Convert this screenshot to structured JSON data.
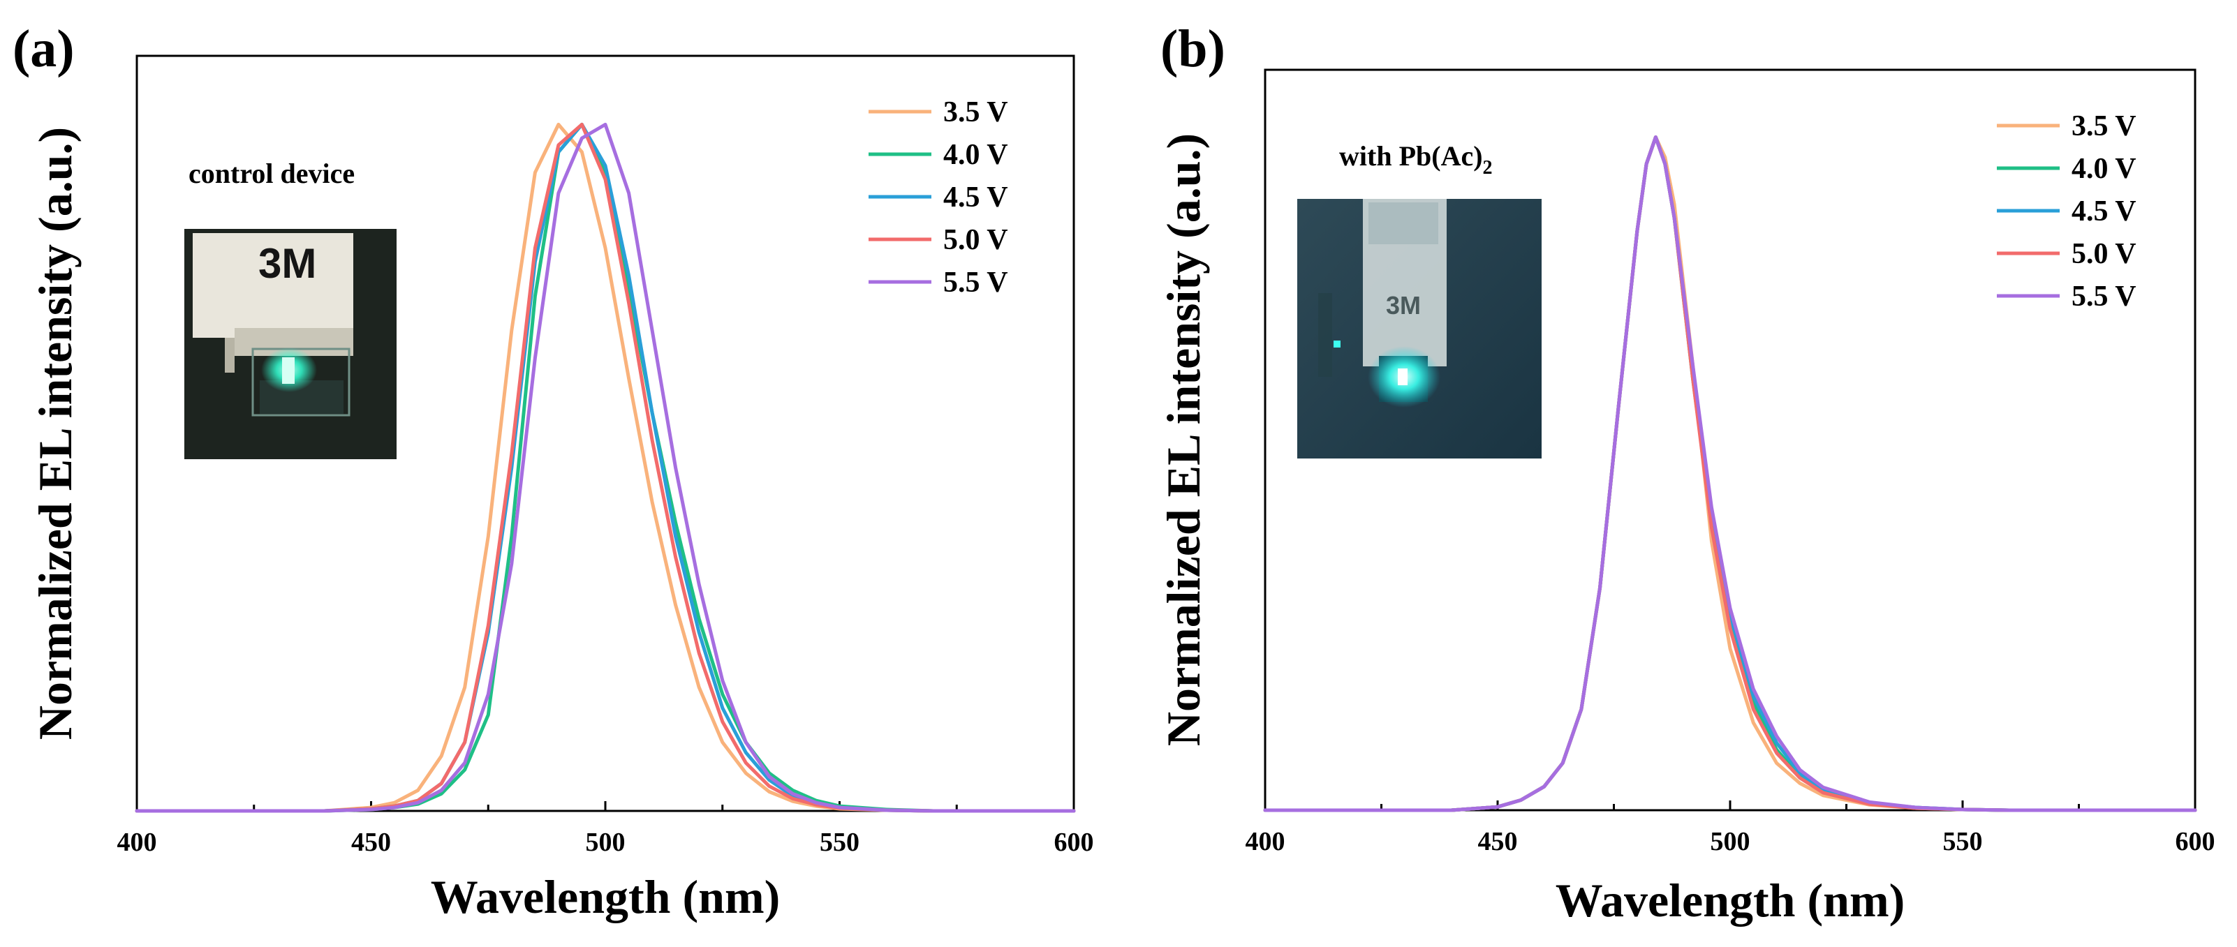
{
  "chart_data": [
    {
      "type": "line",
      "panel": "(a)",
      "xlabel": "Wavelength (nm)",
      "ylabel": "Normalized EL intensity (a.u.)",
      "xlim": [
        400,
        600
      ],
      "ylim": [
        0,
        1.1
      ],
      "xticks": [
        400,
        450,
        500,
        550,
        600
      ],
      "xtick_labels": [
        "400",
        "450",
        "500",
        "550",
        "600"
      ],
      "legend_position": "top-right",
      "inset": {
        "caption": "control device",
        "photo_text": "3M",
        "glow_color": "#33ffd2"
      },
      "x": [
        400,
        440,
        450,
        455,
        460,
        465,
        470,
        475,
        480,
        485,
        490,
        495,
        500,
        505,
        510,
        515,
        520,
        525,
        530,
        535,
        540,
        545,
        550,
        560,
        570,
        600
      ],
      "series": [
        {
          "name": "3.5 V",
          "color": "#f9b27b",
          "values": [
            0,
            0,
            0.005,
            0.012,
            0.03,
            0.08,
            0.18,
            0.4,
            0.7,
            0.93,
            1.0,
            0.96,
            0.82,
            0.63,
            0.45,
            0.3,
            0.18,
            0.1,
            0.055,
            0.028,
            0.014,
            0.007,
            0.003,
            0.001,
            0,
            0
          ]
        },
        {
          "name": "4.0 V",
          "color": "#1fbf86",
          "values": [
            0,
            0,
            0.002,
            0.005,
            0.01,
            0.025,
            0.06,
            0.14,
            0.4,
            0.75,
            0.96,
            1.0,
            0.93,
            0.76,
            0.58,
            0.42,
            0.28,
            0.17,
            0.1,
            0.055,
            0.03,
            0.015,
            0.007,
            0.002,
            0,
            0
          ]
        },
        {
          "name": "4.5 V",
          "color": "#2a9fd8",
          "values": [
            0,
            0,
            0.003,
            0.007,
            0.015,
            0.04,
            0.1,
            0.26,
            0.5,
            0.8,
            0.96,
            1.0,
            0.94,
            0.78,
            0.58,
            0.4,
            0.26,
            0.15,
            0.085,
            0.045,
            0.022,
            0.011,
            0.005,
            0.001,
            0,
            0
          ]
        },
        {
          "name": "5.0 V",
          "color": "#f26b6b",
          "values": [
            0,
            0,
            0.003,
            0.007,
            0.015,
            0.04,
            0.1,
            0.27,
            0.52,
            0.82,
            0.97,
            1.0,
            0.92,
            0.74,
            0.54,
            0.37,
            0.23,
            0.13,
            0.07,
            0.036,
            0.018,
            0.009,
            0.004,
            0.001,
            0,
            0
          ]
        },
        {
          "name": "5.5 V",
          "color": "#a66ee0",
          "values": [
            0,
            0,
            0.002,
            0.005,
            0.012,
            0.03,
            0.07,
            0.17,
            0.36,
            0.66,
            0.9,
            0.98,
            1.0,
            0.9,
            0.7,
            0.5,
            0.33,
            0.19,
            0.1,
            0.05,
            0.025,
            0.012,
            0.005,
            0.001,
            0,
            0
          ]
        }
      ]
    },
    {
      "type": "line",
      "panel": "(b)",
      "xlabel": "Wavelength (nm)",
      "ylabel": "Normalized EL intensity (a.u.)",
      "xlim": [
        400,
        600
      ],
      "ylim": [
        0,
        1.1
      ],
      "xticks": [
        400,
        450,
        500,
        550,
        600
      ],
      "xtick_labels": [
        "400",
        "450",
        "500",
        "550",
        "600"
      ],
      "legend_position": "top-right",
      "inset": {
        "caption_main": "with Pb(Ac)",
        "caption_sub": "2",
        "photo_text": "3M",
        "glow_color": "#3dfff0"
      },
      "x": [
        400,
        440,
        450,
        455,
        460,
        464,
        468,
        472,
        476,
        480,
        482,
        484,
        486,
        488,
        492,
        496,
        500,
        505,
        510,
        515,
        520,
        530,
        540,
        550,
        560,
        600
      ],
      "series": [
        {
          "name": "3.5 V",
          "color": "#f9b27b",
          "values": [
            0,
            0,
            0.005,
            0.015,
            0.035,
            0.07,
            0.15,
            0.33,
            0.6,
            0.86,
            0.96,
            1.0,
            0.97,
            0.9,
            0.66,
            0.4,
            0.24,
            0.13,
            0.07,
            0.04,
            0.022,
            0.008,
            0.003,
            0.001,
            0,
            0
          ]
        },
        {
          "name": "4.0 V",
          "color": "#1fbf86",
          "values": [
            0,
            0,
            0.005,
            0.015,
            0.035,
            0.07,
            0.15,
            0.33,
            0.6,
            0.86,
            0.96,
            1.0,
            0.96,
            0.88,
            0.64,
            0.43,
            0.28,
            0.16,
            0.09,
            0.05,
            0.028,
            0.01,
            0.004,
            0.001,
            0,
            0
          ]
        },
        {
          "name": "4.5 V",
          "color": "#2a9fd8",
          "values": [
            0,
            0,
            0.005,
            0.015,
            0.035,
            0.07,
            0.15,
            0.33,
            0.6,
            0.86,
            0.96,
            1.0,
            0.96,
            0.88,
            0.65,
            0.44,
            0.29,
            0.17,
            0.1,
            0.055,
            0.03,
            0.011,
            0.004,
            0.001,
            0,
            0
          ]
        },
        {
          "name": "5.0 V",
          "color": "#f26b6b",
          "values": [
            0,
            0,
            0.005,
            0.015,
            0.035,
            0.07,
            0.15,
            0.33,
            0.6,
            0.86,
            0.96,
            1.0,
            0.96,
            0.88,
            0.64,
            0.42,
            0.27,
            0.15,
            0.085,
            0.048,
            0.026,
            0.009,
            0.003,
            0.001,
            0,
            0
          ]
        },
        {
          "name": "5.5 V",
          "color": "#a66ee0",
          "values": [
            0,
            0,
            0.005,
            0.015,
            0.035,
            0.07,
            0.15,
            0.33,
            0.6,
            0.86,
            0.96,
            1.0,
            0.96,
            0.88,
            0.66,
            0.45,
            0.3,
            0.18,
            0.11,
            0.06,
            0.034,
            0.012,
            0.004,
            0.001,
            0,
            0
          ]
        }
      ]
    }
  ]
}
